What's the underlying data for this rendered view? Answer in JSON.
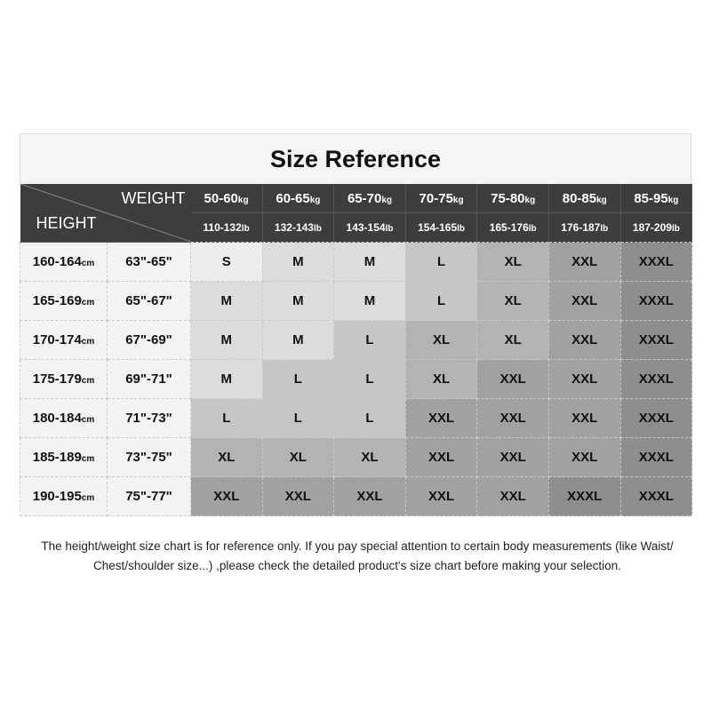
{
  "title": "Size Reference",
  "weight_label": "WEIGHT",
  "height_label": "HEIGHT",
  "weights_kg": [
    [
      "50-60",
      "kg"
    ],
    [
      "60-65",
      "kg"
    ],
    [
      "65-70",
      "kg"
    ],
    [
      "70-75",
      "kg"
    ],
    [
      "75-80",
      "kg"
    ],
    [
      "80-85",
      "kg"
    ],
    [
      "85-95",
      "kg"
    ]
  ],
  "weights_lb": [
    [
      "110-132",
      "lb"
    ],
    [
      "132-143",
      "lb"
    ],
    [
      "143-154",
      "lb"
    ],
    [
      "154-165",
      "lb"
    ],
    [
      "165-176",
      "lb"
    ],
    [
      "176-187",
      "lb"
    ],
    [
      "187-209",
      "lb"
    ]
  ],
  "rows": [
    {
      "cm": "160-164",
      "unit": "cm",
      "in": "63\"-65\"",
      "sizes": [
        "S",
        "M",
        "M",
        "L",
        "XL",
        "XXL",
        "XXXL"
      ]
    },
    {
      "cm": "165-169",
      "unit": "cm",
      "in": "65\"-67\"",
      "sizes": [
        "M",
        "M",
        "M",
        "L",
        "XL",
        "XXL",
        "XXXL"
      ]
    },
    {
      "cm": "170-174",
      "unit": "cm",
      "in": "67\"-69\"",
      "sizes": [
        "M",
        "M",
        "L",
        "XL",
        "XL",
        "XXL",
        "XXXL"
      ]
    },
    {
      "cm": "175-179",
      "unit": "cm",
      "in": "69\"-71\"",
      "sizes": [
        "M",
        "L",
        "L",
        "XL",
        "XXL",
        "XXL",
        "XXXL"
      ]
    },
    {
      "cm": "180-184",
      "unit": "cm",
      "in": "71\"-73\"",
      "sizes": [
        "L",
        "L",
        "L",
        "XXL",
        "XXL",
        "XXL",
        "XXXL"
      ]
    },
    {
      "cm": "185-189",
      "unit": "cm",
      "in": "73\"-75\"",
      "sizes": [
        "XL",
        "XL",
        "XL",
        "XXL",
        "XXL",
        "XXL",
        "XXXL"
      ]
    },
    {
      "cm": "190-195",
      "unit": "cm",
      "in": "75\"-77\"",
      "sizes": [
        "XXL",
        "XXL",
        "XXL",
        "XXL",
        "XXL",
        "XXXL",
        "XXXL"
      ]
    }
  ],
  "size_colors": {
    "S": "#ececec",
    "M": "#dcdcdc",
    "L": "#c6c6c6",
    "XL": "#b3b3b3",
    "XXL": "#a1a1a1",
    "XXXL": "#8e8e8e"
  },
  "header_color": "#3d3d3d",
  "note": "The height/weight size chart is for reference only. If you pay special attention to certain body measurements  (like Waist/ Chest/shoulder size...)  ,please check the detailed product's size chart before making your selection."
}
